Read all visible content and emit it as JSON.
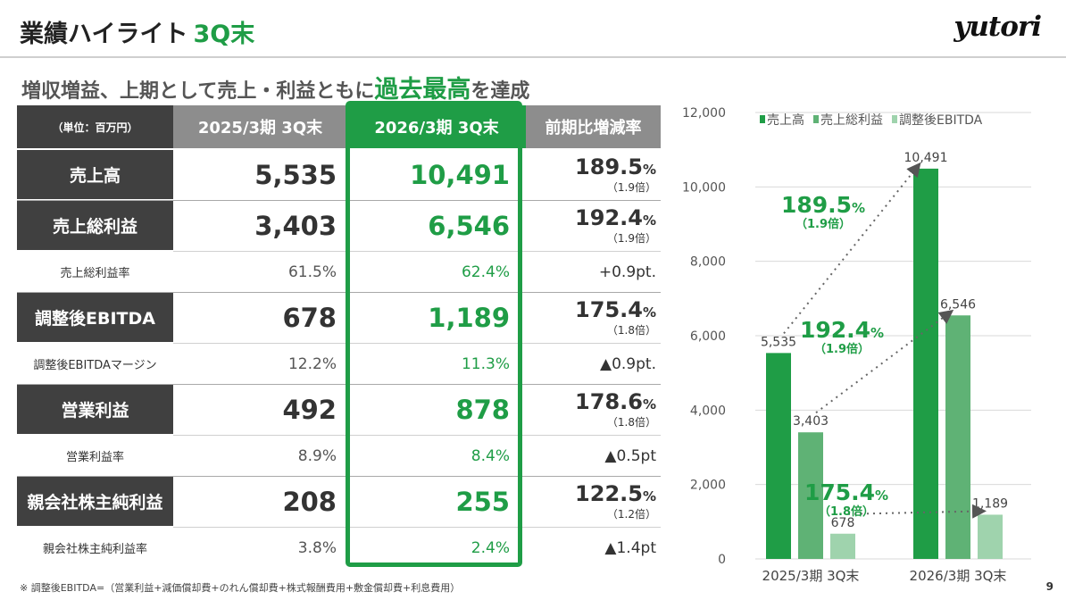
{
  "header": {
    "title": "業績ハイライト",
    "title_accent": "3Q末",
    "logo": "yutori",
    "subtitle_before": "増収増益、上期として売上・利益ともに",
    "subtitle_accent": "過去最高",
    "subtitle_after": "を達成"
  },
  "table": {
    "unit_label": "（単位：百万円）",
    "col_prev": "2025/3期 3Q末",
    "col_curr": "2026/3期 3Q末",
    "col_rate": "前期比増減率",
    "rows": [
      {
        "label": "売上高",
        "prev": "5,535",
        "curr": "10,491",
        "rate": "189.5",
        "rate_unit": "%",
        "mult": "（1.9倍）"
      },
      {
        "label": "売上総利益",
        "prev": "3,403",
        "curr": "6,546",
        "rate": "192.4",
        "rate_unit": "%",
        "mult": "（1.9倍）"
      },
      {
        "label": "売上総利益率",
        "prev": "61.5%",
        "curr": "62.4%",
        "rate": "+0.9pt."
      },
      {
        "label": "調整後EBITDA",
        "prev": "678",
        "curr": "1,189",
        "rate": "175.4",
        "rate_unit": "%",
        "mult": "（1.8倍）"
      },
      {
        "label": "調整後EBITDAマージン",
        "prev": "12.2%",
        "curr": "11.3%",
        "rate": "▲0.9pt."
      },
      {
        "label": "営業利益",
        "prev": "492",
        "curr": "878",
        "rate": "178.6",
        "rate_unit": "%",
        "mult": "（1.8倍）"
      },
      {
        "label": "営業利益率",
        "prev": "8.9%",
        "curr": "8.4%",
        "rate": "▲0.5pt"
      },
      {
        "label": "親会社株主純利益",
        "prev": "208",
        "curr": "255",
        "rate": "122.5",
        "rate_unit": "%",
        "mult": "（1.2倍）"
      },
      {
        "label": "親会社株主純利益率",
        "prev": "3.8%",
        "curr": "2.4%",
        "rate": "▲1.4pt"
      }
    ]
  },
  "chart_data": {
    "type": "bar",
    "categories": [
      "2025/3期 3Q末",
      "2026/3期 3Q末"
    ],
    "series": [
      {
        "name": "売上高",
        "values": [
          5535,
          10491
        ],
        "labels": [
          "5,535",
          "10,491"
        ],
        "color": "#1f9d46"
      },
      {
        "name": "売上総利益",
        "values": [
          3403,
          6546
        ],
        "labels": [
          "3,403",
          "6,546"
        ],
        "color": "#5fb275"
      },
      {
        "name": "調整後EBITDA",
        "values": [
          678,
          1189
        ],
        "labels": [
          "678",
          "1,189"
        ],
        "color": "#9fd3ad"
      }
    ],
    "ylim": [
      0,
      12000
    ],
    "yticks": [
      "0",
      "2,000",
      "4,000",
      "6,000",
      "8,000",
      "10,000",
      "12,000"
    ],
    "legend_position": "top",
    "annotations": [
      {
        "pct": "189.5",
        "unit": "%",
        "mult": "（1.9倍）"
      },
      {
        "pct": "192.4",
        "unit": "%",
        "mult": "（1.9倍）"
      },
      {
        "pct": "175.4",
        "unit": "%",
        "mult": "（1.8倍）"
      }
    ]
  },
  "footer": {
    "note": "※ 調整後EBITDA=（営業利益+減価償却費+のれん償却費+株式報酬費用+敷金償却費+利息費用）",
    "page": "9"
  }
}
